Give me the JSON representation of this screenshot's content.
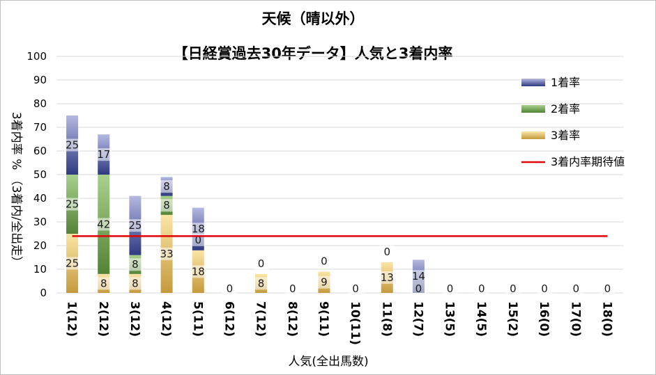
{
  "chart_data": {
    "type": "bar",
    "stacked": true,
    "title": "天候（晴以外）",
    "subtitle": "【日経賞過去30年データ】人気と3着内率",
    "xlabel": "人気(全出馬数)",
    "ylabel": "3着内率 % （3着内/全出走）",
    "ylim": [
      0,
      100
    ],
    "yticks": [
      "0",
      "10",
      "20",
      "30",
      "40",
      "50",
      "60",
      "70",
      "80",
      "90",
      "100"
    ],
    "grid": true,
    "legend_position": "right",
    "categories": [
      "1(12)",
      "2(12)",
      "3(12)",
      "4(12)",
      "5(11)",
      "6(12)",
      "7(12)",
      "8(12)",
      "9(11)",
      "10(11)",
      "11(8)",
      "12(7)",
      "13(5)",
      "14(5)",
      "15(2)",
      "16(0)",
      "17(0)",
      "18(0)"
    ],
    "series": [
      {
        "name": "3着率",
        "values": [
          25,
          8,
          8,
          33,
          18,
          0,
          8,
          0,
          9,
          0,
          13,
          0,
          0,
          0,
          0,
          0,
          0,
          0
        ],
        "labels": [
          "25",
          "8",
          "8",
          "33",
          "18",
          "0",
          "8",
          "0",
          "9",
          "0",
          "13",
          "0",
          "0",
          "0",
          "0",
          "0",
          "0",
          "0"
        ],
        "color_light": "#fbe5a6",
        "color_dark": "#c49a3c"
      },
      {
        "name": "2着率",
        "values": [
          25,
          42,
          8,
          8,
          0,
          0,
          0,
          0,
          0,
          0,
          0,
          0,
          0,
          0,
          0,
          0,
          0,
          0
        ],
        "labels": [
          "25",
          "42",
          "8",
          "8",
          "0",
          "",
          "0",
          "",
          "0",
          "",
          "0",
          "",
          "",
          "",
          "",
          "",
          "",
          ""
        ],
        "color_light": "#a9d18e",
        "color_dark": "#548235"
      },
      {
        "name": "1着率",
        "values": [
          25,
          17,
          25,
          8,
          18,
          0,
          0,
          0,
          0,
          0,
          0,
          14,
          0,
          0,
          0,
          0,
          0,
          0
        ],
        "labels": [
          "25",
          "17",
          "25",
          "8",
          "18",
          "",
          "",
          "",
          "",
          "",
          "",
          "14",
          "",
          "",
          "",
          "",
          "",
          ""
        ],
        "color_light": "#b4b8e0",
        "color_dark": "#2f3a80"
      }
    ],
    "expected_line": {
      "name": "3着内率期待値",
      "value": 24,
      "color": "#e00000"
    }
  }
}
